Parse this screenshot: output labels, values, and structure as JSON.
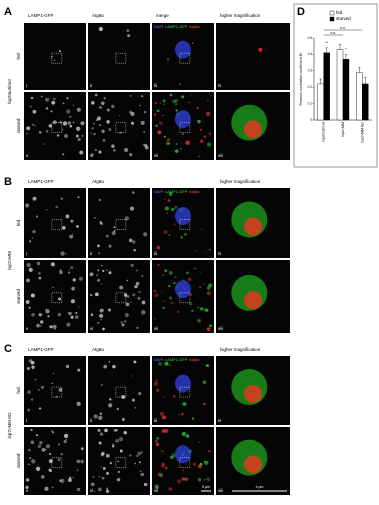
{
  "panels": [
    {
      "label": "A",
      "genotype": "lsp2mut/mut",
      "rows": [
        "fed",
        "starved"
      ],
      "headers": [
        "LAMP1-GFP",
        "Atg8a",
        "merge",
        "higher magnification"
      ],
      "merge_overlay": [
        "DAPI",
        "LAMP1-GFP",
        "Atg8a"
      ],
      "numerals": [
        "i",
        "ii",
        "iii",
        "iv",
        "v",
        "vi",
        "vii",
        "viii"
      ]
    },
    {
      "label": "B",
      "genotype": "lsp2>MM",
      "rows": [
        "fed",
        "starved"
      ],
      "headers": [
        "LAMP1-GFP",
        "Atg8a",
        null,
        "higher magnification"
      ],
      "merge_overlay": [
        "DAPI",
        "LAMP1-GFP",
        "Atg8a"
      ],
      "numerals": [
        "i",
        "ii",
        "iii",
        "iv",
        "v",
        "vi",
        "vii",
        "viii"
      ]
    },
    {
      "label": "C",
      "genotype": "lsp2>MM KD",
      "rows": [
        "fed",
        "starved"
      ],
      "headers": [
        "LAMP1-GFP",
        "Atg8a",
        null,
        "higher magnification"
      ],
      "merge_overlay": [
        "DAPI",
        "LAMP1-GFP",
        "Atg8a"
      ],
      "numerals": [
        "i",
        "ii",
        "iii",
        "iv",
        "v",
        "vi",
        "vii",
        "viii"
      ],
      "scale_bars": [
        "5 µm",
        "4 µm"
      ]
    }
  ],
  "chart_data": {
    "type": "bar",
    "label": "D",
    "ylabel": "Pearson correlation coefficient Rr",
    "categories": [
      "lsp2mut/mut",
      "lsp2>MM",
      "lsp2>MM KD"
    ],
    "series": [
      {
        "name": "fed",
        "color": "#ffffff",
        "values": [
          0.22,
          0.43,
          0.29
        ],
        "errors": [
          0.03,
          0.03,
          0.03
        ]
      },
      {
        "name": "starved",
        "color": "#000000",
        "values": [
          0.41,
          0.37,
          0.22
        ],
        "errors": [
          0.03,
          0.03,
          0.04
        ]
      }
    ],
    "ylim": [
      0,
      0.5
    ],
    "yticks": [
      0,
      0.1,
      0.2,
      0.3,
      0.4,
      0.5
    ],
    "annotations": [
      "**",
      "*",
      "n.s.",
      "n.s."
    ]
  }
}
